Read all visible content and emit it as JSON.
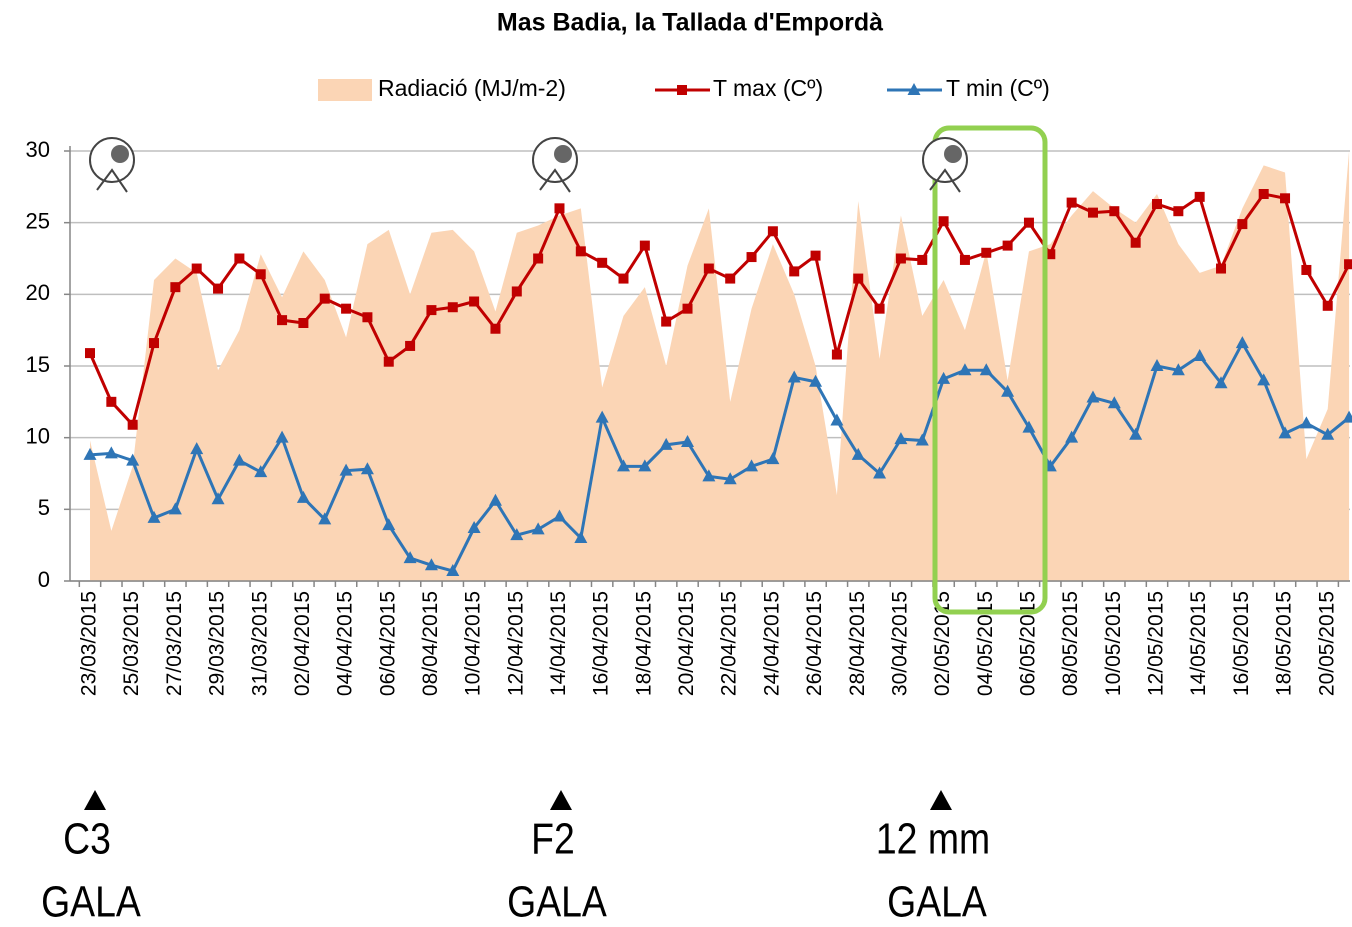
{
  "chart_data": {
    "type": "line",
    "title": "Mas Badia, la Tallada d'Empordà",
    "categories": [
      "23/03/2015",
      null,
      "25/03/2015",
      null,
      "27/03/2015",
      null,
      "29/03/2015",
      null,
      "31/03/2015",
      null,
      "02/04/2015",
      null,
      "04/04/2015",
      null,
      "06/04/2015",
      null,
      "08/04/2015",
      null,
      "10/04/2015",
      null,
      "12/04/2015",
      null,
      "14/04/2015",
      null,
      "16/04/2015",
      null,
      "18/04/2015",
      null,
      "20/04/2015",
      null,
      "22/04/2015",
      null,
      "24/04/2015",
      null,
      "26/04/2015",
      null,
      "28/04/2015",
      null,
      "30/04/2015",
      null,
      "02/05/2015",
      null,
      "04/05/2015",
      null,
      "06/05/2015",
      null,
      "08/05/2015",
      null,
      "10/05/2015",
      null,
      "12/05/2015",
      null,
      "14/05/2015",
      null,
      "16/05/2015",
      null,
      "18/05/2015",
      null,
      "20/05/2015",
      null
    ],
    "series": [
      {
        "name": "Radiació (MJ/m-2)",
        "color": "#fbd5b5",
        "kind": "area",
        "values": [
          9.8,
          3.5,
          8,
          21,
          22.5,
          21.5,
          14.7,
          17.5,
          22.8,
          19.8,
          23,
          21,
          17,
          23.5,
          24.5,
          20,
          24.3,
          24.5,
          23,
          18.8,
          24.3,
          24.8,
          25.5,
          26,
          13.5,
          18.5,
          20.5,
          15,
          22,
          26,
          12.5,
          19,
          23.5,
          20,
          15,
          6,
          26.5,
          15.5,
          25.5,
          18.5,
          21,
          17.5,
          23,
          14,
          23,
          23.5,
          25.5,
          27.2,
          26,
          25,
          27,
          23.5,
          21.5,
          22,
          26,
          29,
          28.5,
          8.5,
          12,
          30
        ]
      },
      {
        "name": "T max (Cº)",
        "color": "#c00000",
        "kind": "line",
        "marker": "square",
        "values": [
          15.9,
          12.5,
          10.9,
          16.6,
          20.5,
          21.8,
          20.4,
          22.5,
          21.4,
          18.2,
          18.0,
          19.7,
          19.0,
          18.4,
          15.3,
          16.4,
          18.9,
          19.1,
          19.5,
          17.6,
          20.2,
          22.5,
          26.0,
          23.0,
          22.2,
          21.1,
          23.4,
          18.1,
          19.0,
          21.8,
          21.1,
          22.6,
          24.4,
          21.6,
          22.7,
          15.8,
          21.1,
          19.0,
          22.5,
          22.4,
          25.1,
          22.4,
          22.9,
          23.4,
          25.0,
          22.8,
          26.4,
          25.7,
          25.8,
          23.6,
          26.3,
          25.8,
          26.8,
          21.8,
          24.9,
          27.0,
          26.7,
          21.7,
          19.2,
          22.1
        ]
      },
      {
        "name": "T min (Cº)",
        "color": "#2e75b6",
        "kind": "line",
        "marker": "triangle",
        "values": [
          8.8,
          8.9,
          8.4,
          4.4,
          5.0,
          9.2,
          5.7,
          8.4,
          7.6,
          10.0,
          5.8,
          4.3,
          7.7,
          7.8,
          3.9,
          1.6,
          1.1,
          0.7,
          3.7,
          5.6,
          3.2,
          3.6,
          4.5,
          3.0,
          11.4,
          8.0,
          8.0,
          9.5,
          9.7,
          7.3,
          7.1,
          8.0,
          8.5,
          14.2,
          13.9,
          11.2,
          8.8,
          7.5,
          9.9,
          9.8,
          14.1,
          14.7,
          14.7,
          13.2,
          10.7,
          8.0,
          10.0,
          12.8,
          12.4,
          10.2,
          15.0,
          14.7,
          15.7,
          13.8,
          16.6,
          14.0,
          10.3,
          11.0,
          10.2,
          11.4
        ]
      }
    ],
    "ylim": [
      0,
      30
    ],
    "yticks": [
      0,
      5,
      10,
      15,
      20,
      25,
      30
    ],
    "grid": true,
    "legend": "top",
    "annotations": [
      {
        "stage": "C3",
        "variety": "GALA"
      },
      {
        "stage": "F2",
        "variety": "GALA"
      },
      {
        "stage": "12 mm",
        "variety": "GALA"
      }
    ]
  }
}
